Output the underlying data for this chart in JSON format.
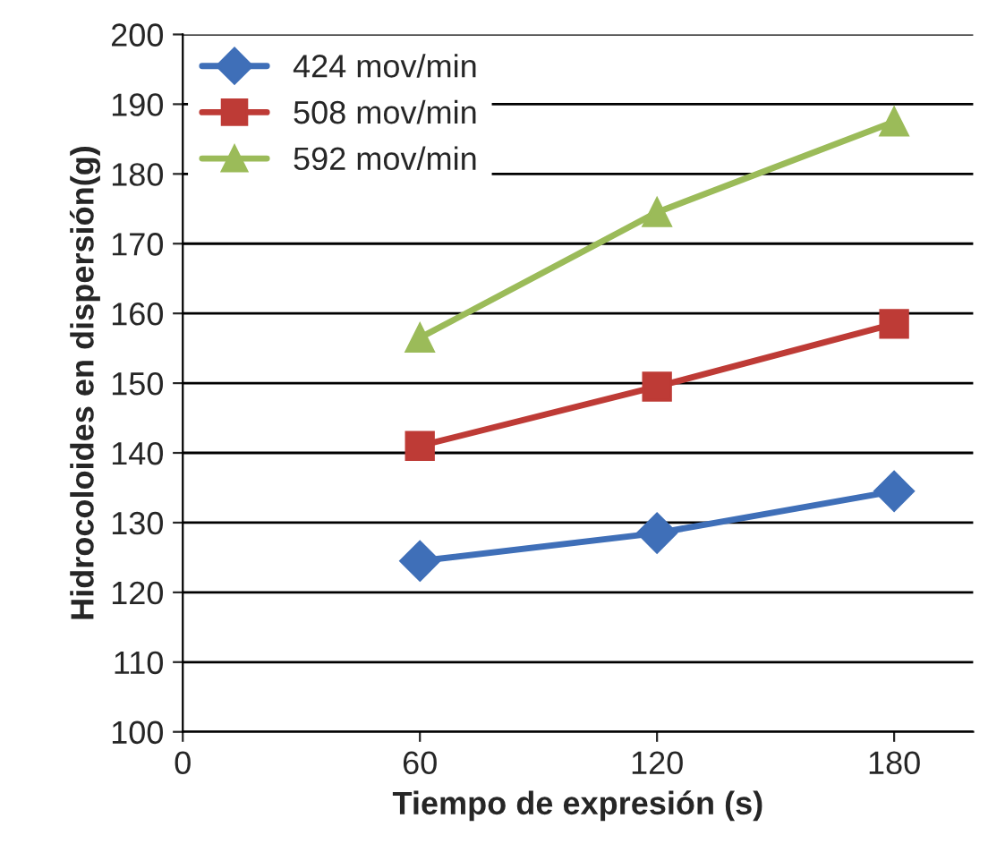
{
  "chart_data": {
    "type": "line",
    "xlabel": "Tiempo de expresión (s)",
    "ylabel": "Hidrocoloides en dispersión(g)",
    "x": [
      60,
      120,
      180
    ],
    "series": [
      {
        "name": "424 mov/min",
        "color": "#3f6fb8",
        "values": [
          124.5,
          128.5,
          134.5
        ],
        "marker": "diamond"
      },
      {
        "name": "508 mov/min",
        "color": "#be3b36",
        "values": [
          141,
          149.5,
          158.5
        ],
        "marker": "square"
      },
      {
        "name": "592 mov/min",
        "color": "#9bbb59",
        "values": [
          156.5,
          174.5,
          187.5
        ],
        "marker": "triangle"
      }
    ],
    "xlim": [
      0,
      200
    ],
    "xticks": [
      0,
      60,
      120,
      180
    ],
    "ylim": [
      100,
      200
    ],
    "yticks": [
      100,
      110,
      120,
      130,
      140,
      150,
      160,
      170,
      180,
      190,
      200
    ],
    "grid": "y",
    "legend": "top left",
    "line_style": "solid"
  }
}
